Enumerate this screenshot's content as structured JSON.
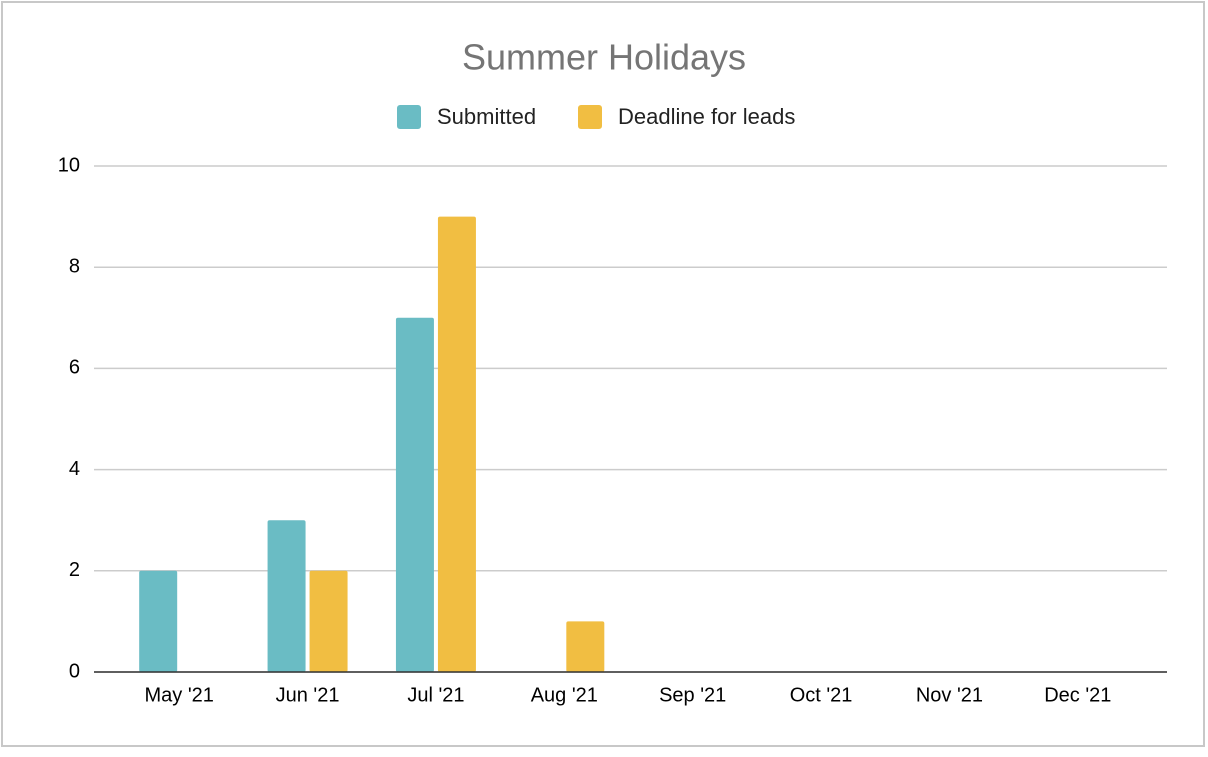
{
  "chart_data": {
    "type": "bar",
    "title": "Summer Holidays",
    "categories": [
      "May '21",
      "Jun '21",
      "Jul '21",
      "Aug '21",
      "Sep '21",
      "Oct '21",
      "Nov '21",
      "Dec '21"
    ],
    "series": [
      {
        "name": "Submitted",
        "color": "#6abcc4",
        "values": [
          2,
          3,
          7,
          0,
          0,
          0,
          0,
          0
        ]
      },
      {
        "name": "Deadline for leads",
        "color": "#f1be42",
        "values": [
          0,
          2,
          9,
          1,
          0,
          0,
          0,
          0
        ]
      }
    ],
    "ylim": [
      0,
      10
    ],
    "yticks": [
      0,
      2,
      4,
      6,
      8,
      10
    ],
    "grid": true,
    "legend": "top"
  }
}
